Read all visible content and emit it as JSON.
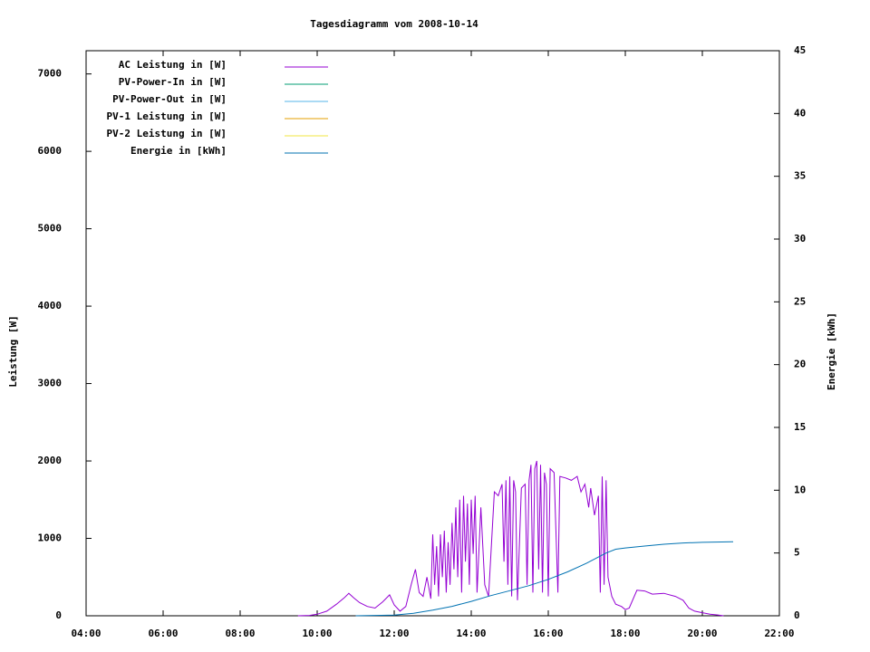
{
  "chart_data": {
    "type": "line",
    "title": "Tagesdiagramm vom 2008-10-14",
    "ylabel": "Leistung [W]",
    "y2label": "Energie [kWh]",
    "xlim": [
      4,
      22
    ],
    "xticks": [
      {
        "value": 4,
        "label": "04:00"
      },
      {
        "value": 6,
        "label": "06:00"
      },
      {
        "value": 8,
        "label": "08:00"
      },
      {
        "value": 10,
        "label": "10:00"
      },
      {
        "value": 12,
        "label": "12:00"
      },
      {
        "value": 14,
        "label": "14:00"
      },
      {
        "value": 16,
        "label": "16:00"
      },
      {
        "value": 18,
        "label": "18:00"
      },
      {
        "value": 20,
        "label": "20:00"
      },
      {
        "value": 22,
        "label": "22:00"
      }
    ],
    "ylim": [
      0,
      7300
    ],
    "yticks": [
      0,
      1000,
      2000,
      3000,
      4000,
      5000,
      6000,
      7000
    ],
    "y2lim": [
      0,
      45
    ],
    "y2ticks": [
      0,
      5,
      10,
      15,
      20,
      25,
      30,
      35,
      40,
      45
    ],
    "legend": "top-left",
    "series": [
      {
        "name": "AC Leistung in [W]",
        "color": "#9400d3",
        "x": [
          9.5,
          9.8,
          10.0,
          10.25,
          10.5,
          10.7,
          10.82,
          10.95,
          11.1,
          11.3,
          11.5,
          11.7,
          11.88,
          12.0,
          12.15,
          12.3,
          12.45,
          12.55,
          12.65,
          12.75,
          12.85,
          12.95,
          13.0,
          13.05,
          13.1,
          13.15,
          13.2,
          13.25,
          13.3,
          13.35,
          13.4,
          13.45,
          13.5,
          13.55,
          13.6,
          13.65,
          13.7,
          13.75,
          13.8,
          13.85,
          13.9,
          13.95,
          14.0,
          14.05,
          14.1,
          14.15,
          14.25,
          14.35,
          14.45,
          14.6,
          14.7,
          14.8,
          14.85,
          14.9,
          14.95,
          15.0,
          15.05,
          15.1,
          15.15,
          15.2,
          15.3,
          15.4,
          15.45,
          15.5,
          15.55,
          15.6,
          15.65,
          15.7,
          15.75,
          15.8,
          15.85,
          15.9,
          15.95,
          16.0,
          16.05,
          16.15,
          16.25,
          16.3,
          16.45,
          16.6,
          16.75,
          16.85,
          16.95,
          17.05,
          17.1,
          17.2,
          17.3,
          17.35,
          17.4,
          17.45,
          17.5,
          17.55,
          17.65,
          17.75,
          17.9,
          18.0,
          18.1,
          18.3,
          18.5,
          18.7,
          19.0,
          19.3,
          19.5,
          19.65,
          19.8,
          20.0,
          20.2,
          20.4,
          20.55
        ],
        "values": [
          0,
          5,
          20,
          60,
          150,
          230,
          290,
          230,
          170,
          120,
          100,
          180,
          270,
          140,
          60,
          120,
          420,
          600,
          300,
          250,
          500,
          220,
          1050,
          400,
          900,
          250,
          1050,
          500,
          1100,
          300,
          950,
          400,
          1200,
          600,
          1400,
          500,
          1500,
          300,
          1550,
          700,
          1450,
          400,
          1500,
          800,
          1550,
          300,
          1400,
          400,
          250,
          1600,
          1550,
          1700,
          700,
          1750,
          400,
          1800,
          250,
          1750,
          1600,
          200,
          1650,
          1700,
          400,
          1750,
          1950,
          300,
          1900,
          2000,
          600,
          1950,
          300,
          1850,
          1700,
          250,
          1900,
          1850,
          300,
          1800,
          1780,
          1750,
          1800,
          1600,
          1700,
          1400,
          1650,
          1300,
          1550,
          300,
          1800,
          400,
          1750,
          500,
          250,
          150,
          120,
          80,
          100,
          330,
          320,
          280,
          290,
          250,
          200,
          100,
          60,
          40,
          20,
          10,
          0
        ]
      },
      {
        "name": "PV-Power-In in [W]",
        "color": "#009e73",
        "x": [],
        "values": []
      },
      {
        "name": "PV-Power-Out in [W]",
        "color": "#56b4e9",
        "x": [],
        "values": []
      },
      {
        "name": "PV-1 Leistung in [W]",
        "color": "#e69f00",
        "x": [],
        "values": []
      },
      {
        "name": "PV-2 Leistung in [W]",
        "color": "#f0e442",
        "x": [],
        "values": []
      },
      {
        "name": "Energie in [kWh]",
        "color": "#0072b2",
        "axis": "y2",
        "x": [
          11.0,
          12.0,
          12.5,
          13.0,
          13.5,
          14.0,
          14.5,
          15.0,
          15.5,
          16.0,
          16.5,
          17.0,
          17.5,
          17.75,
          18.0,
          18.5,
          19.0,
          19.5,
          20.0,
          20.5,
          20.8
        ],
        "values": [
          0,
          0.05,
          0.2,
          0.45,
          0.75,
          1.15,
          1.6,
          2.0,
          2.4,
          2.9,
          3.5,
          4.2,
          5.0,
          5.3,
          5.4,
          5.55,
          5.7,
          5.8,
          5.85,
          5.88,
          5.9
        ]
      }
    ]
  }
}
